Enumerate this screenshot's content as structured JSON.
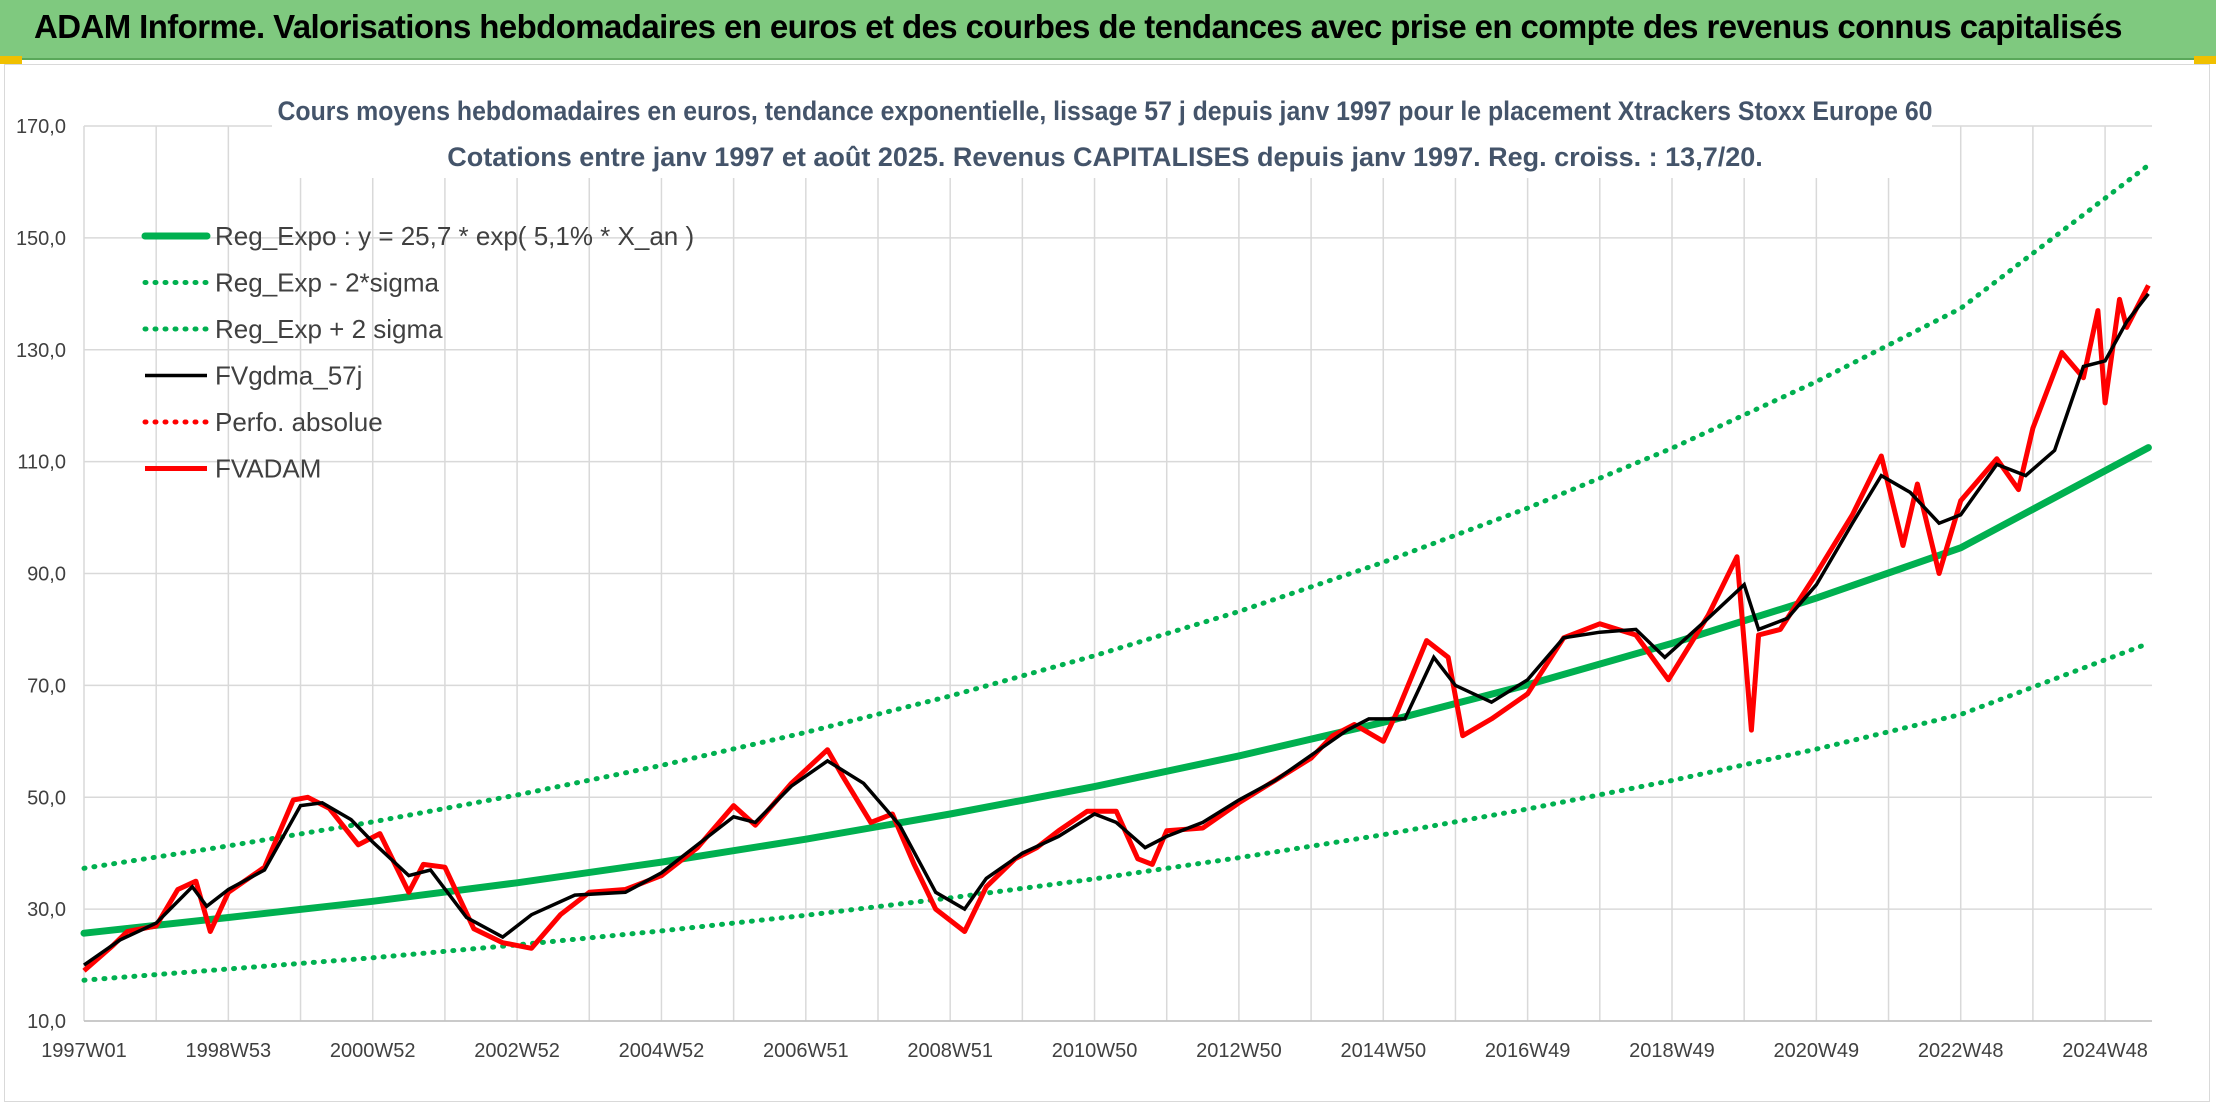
{
  "banner": {
    "title": "ADAM Informe. Valorisations hebdomadaires en euros et des courbes de tendances avec prise en compte des revenus connus capitalisés"
  },
  "colors": {
    "banner_bg": "#7fc97f",
    "trend_green": "#00b050",
    "price_red": "#ff0000",
    "smooth_black": "#000000",
    "title_text": "#44546a"
  },
  "chart_data": {
    "type": "line",
    "title": "Cours moyens hebdomadaires en euros, tendance exponentielle, lissage 57 j depuis janv 1997 pour le placement Xtrackers Stoxx Europe 60",
    "subtitle": "Cotations entre janv 1997 et août 2025. Revenus CAPITALISES depuis janv 1997. Reg. croiss. : 13,7/20.",
    "xlabel": "",
    "ylabel": "",
    "xlim": [
      1997.0,
      2025.65
    ],
    "ylim": [
      10,
      170
    ],
    "grid": true,
    "legend_position": "top-left",
    "x_tick_labels": [
      "1997W01",
      "1998W53",
      "2000W52",
      "2002W52",
      "2004W52",
      "2006W51",
      "2008W51",
      "2010W50",
      "2012W50",
      "2014W50",
      "2016W49",
      "2018W49",
      "2020W49",
      "2022W48",
      "2024W48"
    ],
    "x_tick_positions": [
      1997.0,
      1999.0,
      2001.0,
      2003.0,
      2005.0,
      2007.0,
      2009.0,
      2011.0,
      2013.0,
      2015.0,
      2017.0,
      2019.0,
      2021.0,
      2023.0,
      2025.0
    ],
    "y_tick_values": [
      10,
      30,
      50,
      70,
      90,
      110,
      130,
      150,
      170
    ],
    "y_tick_labels": [
      "10,0",
      "30,0",
      "50,0",
      "70,0",
      "90,0",
      "110,0",
      "130,0",
      "150,0",
      "170,0"
    ],
    "series": [
      {
        "name": "Reg_Expo : y = 25,7 * exp( 5,1% *  X_an )",
        "style": "solid",
        "color": "#00b050",
        "x": [
          1997.0,
          1999.0,
          2001.0,
          2003.0,
          2005.0,
          2007.0,
          2009.0,
          2011.0,
          2013.0,
          2015.0,
          2017.0,
          2019.0,
          2021.0,
          2023.0,
          2025.6
        ],
        "y": [
          25.7,
          28.5,
          31.4,
          34.7,
          38.4,
          42.5,
          47.0,
          51.9,
          57.4,
          63.4,
          70.1,
          77.5,
          85.6,
          94.6,
          112.5
        ]
      },
      {
        "name": "Reg_Exp - 2*sigma",
        "style": "dotted",
        "color": "#00b050",
        "x": [
          1997.0,
          1999.0,
          2001.0,
          2003.0,
          2005.0,
          2007.0,
          2009.0,
          2011.0,
          2013.0,
          2015.0,
          2017.0,
          2019.0,
          2021.0,
          2023.0,
          2025.6
        ],
        "y": [
          17.3,
          19.3,
          21.3,
          23.6,
          26.1,
          28.9,
          32.0,
          35.4,
          39.2,
          43.3,
          47.9,
          53.0,
          58.6,
          64.8,
          77.5
        ]
      },
      {
        "name": "Reg_Exp + 2 sigma",
        "style": "dotted",
        "color": "#00b050",
        "x": [
          1997.0,
          1999.0,
          2001.0,
          2003.0,
          2005.0,
          2007.0,
          2009.0,
          2011.0,
          2013.0,
          2015.0,
          2017.0,
          2019.0,
          2021.0,
          2023.0,
          2025.6
        ],
        "y": [
          37.3,
          41.3,
          45.6,
          50.4,
          55.7,
          61.6,
          68.1,
          75.3,
          83.2,
          92.0,
          101.7,
          112.4,
          124.3,
          137.4,
          163.0
        ]
      },
      {
        "name": "FVgdma_57j",
        "style": "solid",
        "color": "#000000",
        "x": [
          1997.0,
          1997.5,
          1998.0,
          1998.5,
          1998.7,
          1999.0,
          1999.5,
          2000.0,
          2000.3,
          2000.7,
          2001.0,
          2001.5,
          2001.8,
          2002.3,
          2002.8,
          2003.2,
          2003.8,
          2004.5,
          2005.0,
          2005.5,
          2006.0,
          2006.3,
          2006.8,
          2007.3,
          2007.8,
          2008.3,
          2008.8,
          2009.2,
          2009.5,
          2010.0,
          2010.5,
          2011.0,
          2011.3,
          2011.7,
          2012.0,
          2012.5,
          2013.0,
          2013.5,
          2014.0,
          2014.5,
          2014.8,
          2015.3,
          2015.7,
          2016.0,
          2016.5,
          2017.0,
          2017.5,
          2018.0,
          2018.5,
          2018.9,
          2019.5,
          2020.0,
          2020.2,
          2020.6,
          2021.0,
          2021.5,
          2021.9,
          2022.3,
          2022.7,
          2023.0,
          2023.5,
          2023.9,
          2024.3,
          2024.7,
          2025.0,
          2025.3,
          2025.6
        ],
        "y": [
          20.0,
          24.5,
          27.5,
          34.0,
          30.5,
          33.5,
          37.0,
          48.5,
          49.0,
          46.0,
          42.0,
          36.0,
          37.0,
          28.5,
          25.0,
          29.0,
          32.5,
          33.0,
          36.5,
          41.5,
          46.5,
          45.5,
          52.0,
          56.5,
          52.5,
          45.0,
          33.0,
          30.0,
          35.5,
          40.0,
          43.0,
          47.0,
          45.5,
          41.0,
          43.0,
          45.5,
          49.5,
          53.0,
          57.5,
          62.0,
          64.0,
          64.0,
          75.0,
          70.0,
          67.0,
          71.0,
          78.5,
          79.5,
          80.0,
          75.0,
          82.0,
          88.0,
          80.0,
          82.0,
          88.0,
          99.0,
          107.5,
          104.5,
          99.0,
          100.5,
          109.5,
          107.5,
          112.0,
          127.0,
          128.0,
          135.0,
          140.0
        ]
      },
      {
        "name": "Perfo. absolue",
        "style": "dotted",
        "color": "#ff0000",
        "x": [],
        "y": []
      },
      {
        "name": "FVADAM",
        "style": "solid",
        "color": "#ff0000",
        "x": [
          1997.0,
          1997.4,
          1997.6,
          1998.0,
          1998.3,
          1998.55,
          1998.75,
          1999.0,
          1999.5,
          1999.9,
          2000.1,
          2000.4,
          2000.8,
          2001.1,
          2001.5,
          2001.7,
          2002.0,
          2002.4,
          2002.8,
          2003.2,
          2003.6,
          2004.0,
          2004.5,
          2005.0,
          2005.5,
          2006.0,
          2006.3,
          2006.8,
          2007.3,
          2007.5,
          2007.9,
          2008.2,
          2008.5,
          2008.8,
          2009.2,
          2009.5,
          2009.9,
          2010.2,
          2010.5,
          2010.9,
          2011.3,
          2011.6,
          2011.8,
          2012.0,
          2012.5,
          2013.0,
          2013.5,
          2014.0,
          2014.3,
          2014.6,
          2015.0,
          2015.2,
          2015.6,
          2015.9,
          2016.1,
          2016.5,
          2017.0,
          2017.5,
          2018.0,
          2018.5,
          2018.95,
          2019.5,
          2019.9,
          2020.1,
          2020.2,
          2020.5,
          2021.0,
          2021.5,
          2021.9,
          2022.2,
          2022.4,
          2022.7,
          2023.0,
          2023.5,
          2023.8,
          2024.0,
          2024.4,
          2024.7,
          2024.9,
          2025.0,
          2025.2,
          2025.3,
          2025.6
        ],
        "y": [
          19.0,
          23.5,
          26.0,
          27.0,
          33.5,
          35.0,
          26.0,
          33.0,
          37.5,
          49.5,
          50.0,
          48.0,
          41.5,
          43.5,
          33.0,
          38.0,
          37.5,
          26.5,
          24.0,
          23.0,
          29.0,
          33.0,
          33.5,
          36.0,
          41.0,
          48.5,
          45.0,
          52.5,
          58.5,
          54.0,
          45.5,
          47.0,
          38.0,
          30.0,
          26.0,
          34.0,
          39.0,
          41.0,
          44.0,
          47.5,
          47.5,
          39.0,
          38.0,
          44.0,
          44.5,
          49.0,
          53.0,
          57.0,
          61.0,
          63.0,
          60.0,
          65.5,
          78.0,
          75.0,
          61.0,
          64.0,
          68.5,
          78.5,
          81.0,
          79.0,
          71.0,
          82.5,
          93.0,
          62.0,
          79.0,
          80.0,
          90.0,
          100.5,
          111.0,
          95.0,
          106.0,
          90.0,
          103.0,
          110.5,
          105.0,
          116.0,
          129.5,
          125.0,
          137.0,
          120.5,
          139.0,
          134.0,
          141.5
        ]
      }
    ]
  }
}
